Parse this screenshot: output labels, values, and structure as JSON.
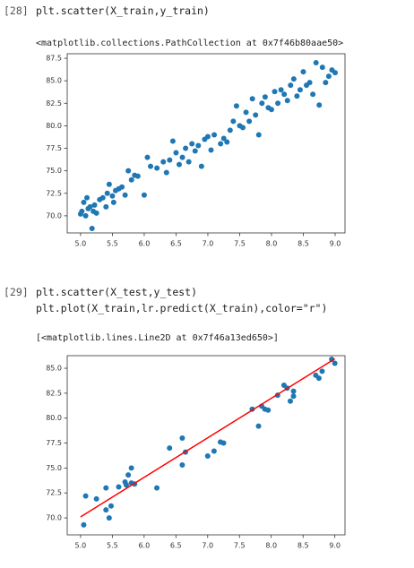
{
  "cells": [
    {
      "prompt": "[28]",
      "code": [
        "plt.scatter(X_train,y_train)"
      ],
      "output": "<matplotlib.collections.PathCollection at 0x7f46b80aae50>"
    },
    {
      "prompt": "[29]",
      "code": [
        "plt.scatter(X_test,y_test)",
        "plt.plot(X_train,lr.predict(X_train),color=\"r\")"
      ],
      "output": "[<matplotlib.lines.Line2D at 0x7f46a13ed650>]"
    }
  ],
  "chart_data": [
    {
      "type": "scatter",
      "xlim": [
        4.79,
        9.155
      ],
      "ylim": [
        68.1,
        88.0
      ],
      "xticks": [
        {
          "value": 5,
          "label": "5.0"
        },
        5.5,
        {
          "value": 6,
          "label": "6.0"
        },
        6.5,
        {
          "value": 7,
          "label": "7.0"
        },
        7.5,
        {
          "value": 8,
          "label": "8.0"
        },
        8.5,
        {
          "value": 9,
          "label": "9.0"
        }
      ],
      "yticks": [
        {
          "value": 70,
          "label": "70.0"
        },
        72.5,
        {
          "value": 75,
          "label": "75.0"
        },
        77.5,
        {
          "value": 80,
          "label": "80.0"
        },
        82.5,
        {
          "value": 85,
          "label": "85.0"
        },
        87.5
      ],
      "series": [
        {
          "type": "scatter",
          "color": "#1f77b4",
          "x": [
            5.0,
            5.02,
            5.05,
            5.08,
            5.1,
            5.12,
            5.15,
            5.18,
            5.2,
            5.22,
            5.25,
            5.3,
            5.35,
            5.4,
            5.42,
            5.45,
            5.5,
            5.52,
            5.55,
            5.6,
            5.65,
            5.7,
            5.75,
            5.8,
            5.85,
            5.9,
            6.0,
            6.05,
            6.1,
            6.2,
            6.3,
            6.35,
            6.4,
            6.45,
            6.5,
            6.55,
            6.6,
            6.65,
            6.7,
            6.75,
            6.8,
            6.85,
            6.9,
            6.95,
            7.0,
            7.05,
            7.1,
            7.2,
            7.25,
            7.3,
            7.35,
            7.4,
            7.45,
            7.5,
            7.55,
            7.6,
            7.65,
            7.7,
            7.75,
            7.8,
            7.85,
            7.9,
            7.95,
            8.0,
            8.05,
            8.1,
            8.15,
            8.2,
            8.25,
            8.3,
            8.35,
            8.4,
            8.45,
            8.5,
            8.55,
            8.6,
            8.65,
            8.7,
            8.75,
            8.8,
            8.85,
            8.9,
            8.95,
            9.0
          ],
          "values": [
            70.2,
            70.5,
            71.5,
            70.0,
            72.0,
            70.8,
            71.0,
            68.6,
            70.5,
            71.2,
            70.3,
            71.8,
            72.0,
            71.0,
            72.5,
            73.5,
            72.2,
            71.5,
            72.8,
            73.0,
            73.2,
            72.3,
            75.0,
            74.0,
            74.5,
            74.4,
            72.3,
            76.5,
            75.5,
            75.3,
            76.0,
            74.8,
            76.2,
            78.3,
            77.0,
            75.7,
            76.5,
            77.5,
            76.0,
            78.0,
            77.2,
            77.8,
            75.5,
            78.5,
            78.8,
            77.3,
            79.0,
            78.0,
            78.6,
            78.2,
            79.5,
            80.5,
            82.2,
            80.0,
            79.8,
            81.5,
            80.5,
            83.0,
            81.2,
            79.0,
            82.5,
            83.2,
            82.0,
            81.8,
            83.8,
            82.5,
            84.0,
            83.5,
            82.8,
            84.5,
            85.2,
            83.3,
            84.0,
            86.0,
            84.5,
            84.8,
            83.5,
            87.0,
            82.3,
            86.5,
            84.8,
            85.5,
            86.2,
            85.9
          ]
        }
      ]
    },
    {
      "type": "scatter",
      "xlim": [
        4.79,
        9.16
      ],
      "ylim": [
        68.3,
        86.26
      ],
      "xticks": [
        {
          "value": 5,
          "label": "5.0"
        },
        5.5,
        {
          "value": 6,
          "label": "6.0"
        },
        6.5,
        {
          "value": 7,
          "label": "7.0"
        },
        7.5,
        {
          "value": 8,
          "label": "8.0"
        },
        8.5,
        {
          "value": 9,
          "label": "9.0"
        }
      ],
      "yticks": [
        {
          "value": 70,
          "label": "70.0"
        },
        72.5,
        {
          "value": 75,
          "label": "75.0"
        },
        77.5,
        {
          "value": 80,
          "label": "80.0"
        },
        82.5,
        {
          "value": 85,
          "label": "85.0"
        }
      ],
      "series": [
        {
          "type": "scatter",
          "color": "#1f77b4",
          "x": [
            5.05,
            5.08,
            5.25,
            5.4,
            5.4,
            5.45,
            5.48,
            5.6,
            5.7,
            5.72,
            5.75,
            5.8,
            5.8,
            5.85,
            6.2,
            6.4,
            6.6,
            6.6,
            6.65,
            7.0,
            7.1,
            7.2,
            7.25,
            7.7,
            7.8,
            7.85,
            7.9,
            7.95,
            8.1,
            8.2,
            8.25,
            8.3,
            8.35,
            8.35,
            8.7,
            8.75,
            8.8,
            8.95,
            9.0
          ],
          "values": [
            69.3,
            72.2,
            71.9,
            73.0,
            70.8,
            70.0,
            71.2,
            73.1,
            73.6,
            73.3,
            74.3,
            73.5,
            75.0,
            73.4,
            73.0,
            77.0,
            78.0,
            75.3,
            76.6,
            76.2,
            76.7,
            77.6,
            77.5,
            80.9,
            79.2,
            81.2,
            80.9,
            80.8,
            82.3,
            83.3,
            83.0,
            81.7,
            82.7,
            82.2,
            84.3,
            84.0,
            84.7,
            85.9,
            85.5
          ]
        },
        {
          "type": "line",
          "color": "#ff0000",
          "x": [
            5.0,
            9.0
          ],
          "values": [
            70.1,
            85.95
          ]
        }
      ]
    }
  ]
}
